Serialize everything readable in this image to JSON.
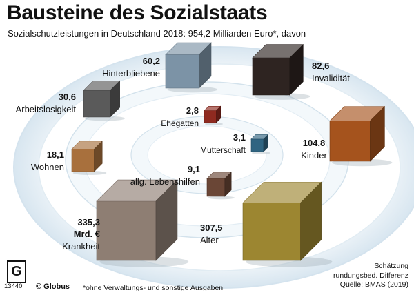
{
  "chart_data": {
    "type": "other",
    "title": "Bausteine des Sozialstaats",
    "subtitle": "Sozialschutzleistungen in Deutschland 2018: 954,2 Milliarden Euro*, davon",
    "unit": "Mrd. €",
    "items": [
      {
        "label": "Krankheit",
        "value": 335.3,
        "value_text": "335,3",
        "unit_text": "Mrd. €",
        "color": "#8e7e73"
      },
      {
        "label": "Alter",
        "value": 307.5,
        "value_text": "307,5",
        "color": "#9c8631"
      },
      {
        "label": "Kinder",
        "value": 104.8,
        "value_text": "104,8",
        "color": "#a5531d"
      },
      {
        "label": "Invalidität",
        "value": 82.6,
        "value_text": "82,6",
        "color": "#2e2421"
      },
      {
        "label": "Hinterbliebene",
        "value": 60.2,
        "value_text": "60,2",
        "color": "#7c93a6"
      },
      {
        "label": "Arbeitslosigkeit",
        "value": 30.6,
        "value_text": "30,6",
        "color": "#5a5a5a"
      },
      {
        "label": "Wohnen",
        "value": 18.1,
        "value_text": "18,1",
        "color": "#a8703d"
      },
      {
        "label": "allg. Lebenshilfen",
        "value": 9.1,
        "value_text": "9,1",
        "color": "#6a4636"
      },
      {
        "label": "Mutterschaft",
        "value": 3.1,
        "value_text": "3,1",
        "color": "#2f6481"
      },
      {
        "label": "Ehegatten",
        "value": 2.8,
        "value_text": "2,8",
        "color": "#8f2a20"
      }
    ]
  },
  "footer": {
    "footnote": "*ohne Verwaltungs- und sonstige Ausgaben",
    "source_lines": [
      "Schätzung",
      "rundungsbed. Differenz",
      "Quelle: BMAS (2019)"
    ],
    "brand": "© Globus",
    "graphic_id": "13440",
    "logo_letter": "G"
  }
}
